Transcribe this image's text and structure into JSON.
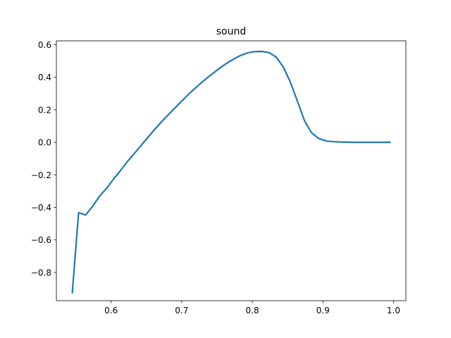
{
  "chart_data": {
    "type": "line",
    "title": "sound",
    "xlabel": "",
    "ylabel": "",
    "xlim": [
      0.5225,
      1.0175
    ],
    "ylim": [
      -0.9735,
      0.6239
    ],
    "xticks": [
      0.6,
      0.7,
      0.8,
      0.9,
      1.0
    ],
    "xtick_labels": [
      "0.6",
      "0.7",
      "0.8",
      "0.9",
      "1.0"
    ],
    "yticks": [
      -0.8,
      -0.6,
      -0.4,
      -0.2,
      0.0,
      0.2,
      0.4,
      0.6
    ],
    "ytick_labels": [
      "−0.8",
      "−0.6",
      "−0.4",
      "−0.2",
      "0.0",
      "0.2",
      "0.4",
      "0.6"
    ],
    "grid": false,
    "legend": "none",
    "series": [
      {
        "color": "#1f77b4",
        "x": [
          0.545,
          0.554,
          0.564,
          0.574,
          0.584,
          0.594,
          0.604,
          0.614,
          0.624,
          0.634,
          0.644,
          0.654,
          0.664,
          0.674,
          0.684,
          0.694,
          0.704,
          0.714,
          0.724,
          0.734,
          0.744,
          0.754,
          0.764,
          0.774,
          0.784,
          0.794,
          0.804,
          0.814,
          0.824,
          0.834,
          0.844,
          0.854,
          0.864,
          0.874,
          0.884,
          0.894,
          0.904,
          0.914,
          0.924,
          0.934,
          0.944,
          0.954,
          0.964,
          0.974,
          0.984,
          0.995
        ],
        "y": [
          -0.925,
          -0.432,
          -0.447,
          -0.392,
          -0.329,
          -0.281,
          -0.223,
          -0.17,
          -0.113,
          -0.063,
          -0.011,
          0.04,
          0.091,
          0.138,
          0.183,
          0.227,
          0.271,
          0.313,
          0.352,
          0.389,
          0.423,
          0.457,
          0.487,
          0.513,
          0.535,
          0.551,
          0.558,
          0.559,
          0.551,
          0.523,
          0.462,
          0.369,
          0.251,
          0.132,
          0.058,
          0.024,
          0.009,
          0.004,
          0.002,
          0.001,
          0.0,
          0.0,
          0.0,
          0.0,
          0.0,
          0.0
        ]
      }
    ]
  }
}
